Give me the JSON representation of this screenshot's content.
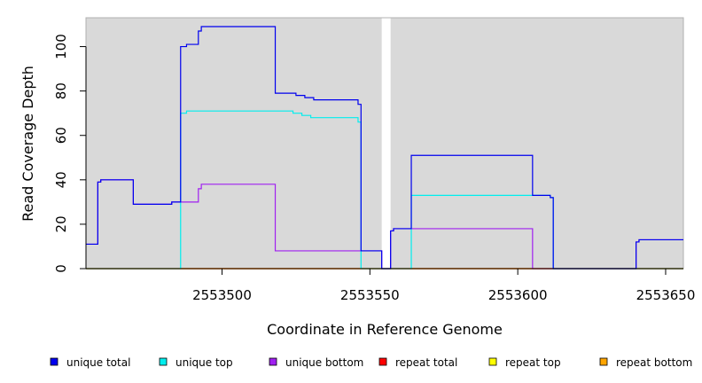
{
  "chart_data": {
    "type": "line",
    "title": "",
    "xlabel": "Coordinate in Reference Genome",
    "ylabel": "Read Coverage Depth",
    "xlim": [
      2553454,
      2553656
    ],
    "ylim": [
      0,
      113
    ],
    "x_ticks": [
      2553500,
      2553550,
      2553600,
      2553650
    ],
    "x_tick_labels": [
      "2553500",
      "2553550",
      "2553600",
      "2553650"
    ],
    "y_ticks": [
      0,
      20,
      40,
      60,
      80,
      100
    ],
    "y_tick_labels": [
      "0",
      "20",
      "40",
      "60",
      "80",
      "100"
    ],
    "grid": false,
    "panel_background": "#d9d9d9",
    "gap_region": [
      2553554,
      2553557
    ],
    "legend_position": "bottom",
    "series": [
      {
        "name": "unique total",
        "color": "#0000ee",
        "points": [
          [
            2553454,
            11
          ],
          [
            2553458,
            11
          ],
          [
            2553458,
            39
          ],
          [
            2553459,
            39
          ],
          [
            2553459,
            40
          ],
          [
            2553470,
            40
          ],
          [
            2553470,
            29
          ],
          [
            2553483,
            29
          ],
          [
            2553483,
            30
          ],
          [
            2553486,
            30
          ],
          [
            2553486,
            100
          ],
          [
            2553488,
            100
          ],
          [
            2553488,
            101
          ],
          [
            2553492,
            101
          ],
          [
            2553492,
            107
          ],
          [
            2553493,
            107
          ],
          [
            2553493,
            109
          ],
          [
            2553518,
            109
          ],
          [
            2553518,
            79
          ],
          [
            2553525,
            79
          ],
          [
            2553525,
            78
          ],
          [
            2553528,
            78
          ],
          [
            2553528,
            77
          ],
          [
            2553531,
            77
          ],
          [
            2553531,
            76
          ],
          [
            2553546,
            76
          ],
          [
            2553546,
            74
          ],
          [
            2553547,
            74
          ],
          [
            2553547,
            8
          ],
          [
            2553554,
            8
          ],
          [
            2553554,
            0
          ],
          [
            2553557,
            0
          ],
          [
            2553557,
            17
          ],
          [
            2553558,
            17
          ],
          [
            2553558,
            18
          ],
          [
            2553564,
            18
          ],
          [
            2553564,
            51
          ],
          [
            2553605,
            51
          ],
          [
            2553605,
            33
          ],
          [
            2553611,
            33
          ],
          [
            2553611,
            32
          ],
          [
            2553612,
            32
          ],
          [
            2553612,
            0
          ],
          [
            2553640,
            0
          ],
          [
            2553640,
            12
          ],
          [
            2553641,
            12
          ],
          [
            2553641,
            13
          ],
          [
            2553656,
            13
          ]
        ]
      },
      {
        "name": "unique top",
        "color": "#00eeee",
        "points": [
          [
            2553454,
            0
          ],
          [
            2553486,
            0
          ],
          [
            2553486,
            70
          ],
          [
            2553488,
            70
          ],
          [
            2553488,
            71
          ],
          [
            2553524,
            71
          ],
          [
            2553524,
            70
          ],
          [
            2553527,
            70
          ],
          [
            2553527,
            69
          ],
          [
            2553530,
            69
          ],
          [
            2553530,
            68
          ],
          [
            2553546,
            68
          ],
          [
            2553546,
            66
          ],
          [
            2553547,
            66
          ],
          [
            2553547,
            0
          ],
          [
            2553564,
            0
          ],
          [
            2553564,
            33
          ],
          [
            2553611,
            33
          ],
          [
            2553611,
            32
          ],
          [
            2553612,
            32
          ],
          [
            2553612,
            0
          ],
          [
            2553656,
            0
          ]
        ]
      },
      {
        "name": "unique bottom",
        "color": "#a020f0",
        "points": [
          [
            2553454,
            11
          ],
          [
            2553458,
            11
          ],
          [
            2553458,
            39
          ],
          [
            2553459,
            39
          ],
          [
            2553459,
            40
          ],
          [
            2553470,
            40
          ],
          [
            2553470,
            29
          ],
          [
            2553483,
            29
          ],
          [
            2553483,
            30
          ],
          [
            2553492,
            30
          ],
          [
            2553492,
            36
          ],
          [
            2553493,
            36
          ],
          [
            2553493,
            38
          ],
          [
            2553518,
            38
          ],
          [
            2553518,
            8
          ],
          [
            2553554,
            8
          ],
          [
            2553554,
            0
          ],
          [
            2553557,
            0
          ],
          [
            2553557,
            17
          ],
          [
            2553558,
            17
          ],
          [
            2553558,
            18
          ],
          [
            2553605,
            18
          ],
          [
            2553605,
            0
          ],
          [
            2553640,
            0
          ],
          [
            2553640,
            12
          ],
          [
            2553641,
            12
          ],
          [
            2553641,
            13
          ],
          [
            2553656,
            13
          ]
        ]
      },
      {
        "name": "repeat total",
        "color": "#ff0000",
        "points": [
          [
            2553454,
            0
          ],
          [
            2553656,
            0
          ]
        ]
      },
      {
        "name": "repeat top",
        "color": "#ffff00",
        "points": [
          [
            2553454,
            0
          ],
          [
            2553656,
            0
          ]
        ]
      },
      {
        "name": "repeat bottom",
        "color": "#ffa500",
        "points": [
          [
            2553454,
            0
          ],
          [
            2553656,
            0
          ]
        ]
      }
    ]
  }
}
